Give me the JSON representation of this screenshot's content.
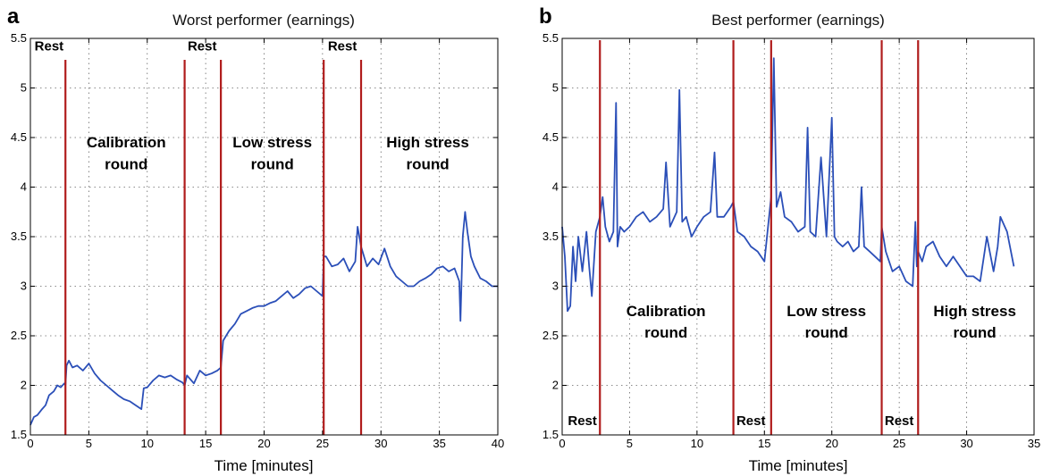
{
  "chart_data": [
    {
      "type": "line",
      "panel_label": "a",
      "title": "Worst performer (earnings)",
      "xlabel": "Time [minutes]",
      "ylabel": "",
      "xlim": [
        0,
        40
      ],
      "ylim": [
        1.5,
        5.5
      ],
      "xticks": [
        "0",
        "5",
        "10",
        "15",
        "20",
        "25",
        "30",
        "35",
        "40"
      ],
      "yticks": [
        "1.5",
        "2",
        "2.5",
        "3",
        "3.5",
        "4",
        "4.5",
        "5",
        "5.5"
      ],
      "grid": true,
      "line_color": "#2b4fb8",
      "boundary_color": "#b01c1c",
      "boundaries": [
        3.0,
        13.2,
        16.3,
        25.1,
        28.3
      ],
      "regions": [
        {
          "line1": "Calibration",
          "line2": "round",
          "x": 8.2,
          "y1": 4.4,
          "y2": 4.18
        },
        {
          "line1": "Low stress",
          "line2": "round",
          "x": 20.7,
          "y1": 4.4,
          "y2": 4.18
        },
        {
          "line1": "High stress",
          "line2": "round",
          "x": 34.0,
          "y1": 4.4,
          "y2": 4.18
        }
      ],
      "rest_labels": [
        {
          "text": "Rest",
          "x": 1.6,
          "y": 5.38
        },
        {
          "text": "Rest",
          "x": 14.7,
          "y": 5.38
        },
        {
          "text": "Rest",
          "x": 26.7,
          "y": 5.38
        }
      ],
      "series": [
        {
          "x": [
            0,
            0.3,
            0.6,
            1.0,
            1.3,
            1.6,
            2.0,
            2.3,
            2.6,
            2.9,
            3.0,
            3.1,
            3.3,
            3.6,
            4.0,
            4.5,
            5.0,
            5.5,
            6.0,
            6.5,
            7.0,
            7.5,
            8.0,
            8.5,
            9.0,
            9.5,
            9.7,
            10.0,
            10.5,
            11.0,
            11.5,
            12.0,
            12.5,
            13.0,
            13.2,
            13.4,
            14.0,
            14.5,
            15.0,
            15.5,
            16.0,
            16.3,
            16.5,
            17.0,
            17.5,
            18.0,
            18.5,
            19.0,
            19.5,
            20.0,
            20.5,
            21.0,
            21.5,
            22.0,
            22.5,
            23.0,
            23.5,
            24.0,
            24.5,
            25.0,
            25.1,
            25.3,
            25.8,
            26.3,
            26.8,
            27.3,
            27.8,
            28.0,
            28.3,
            28.8,
            29.3,
            29.8,
            30.3,
            30.8,
            31.3,
            31.8,
            32.3,
            32.8,
            33.3,
            33.8,
            34.3,
            34.8,
            35.3,
            35.8,
            36.3,
            36.7,
            36.8,
            37.0,
            37.2,
            37.4,
            37.7,
            38.0,
            38.5,
            39.0,
            39.5,
            40.0
          ],
          "y": [
            1.6,
            1.68,
            1.7,
            1.76,
            1.8,
            1.9,
            1.94,
            2.0,
            1.98,
            2.02,
            2.0,
            2.2,
            2.25,
            2.18,
            2.2,
            2.15,
            2.22,
            2.12,
            2.05,
            2.0,
            1.95,
            1.9,
            1.86,
            1.84,
            1.8,
            1.76,
            1.97,
            1.98,
            2.05,
            2.1,
            2.08,
            2.1,
            2.06,
            2.03,
            2.0,
            2.1,
            2.02,
            2.15,
            2.1,
            2.12,
            2.15,
            2.18,
            2.45,
            2.55,
            2.62,
            2.72,
            2.75,
            2.78,
            2.8,
            2.8,
            2.83,
            2.85,
            2.9,
            2.95,
            2.88,
            2.92,
            2.98,
            3.0,
            2.95,
            2.9,
            3.3,
            3.3,
            3.2,
            3.22,
            3.28,
            3.15,
            3.25,
            3.6,
            3.4,
            3.2,
            3.28,
            3.22,
            3.38,
            3.2,
            3.1,
            3.05,
            3.0,
            3.0,
            3.05,
            3.08,
            3.12,
            3.18,
            3.2,
            3.15,
            3.18,
            3.05,
            2.65,
            3.5,
            3.75,
            3.55,
            3.3,
            3.2,
            3.08,
            3.05,
            3.0,
            3.0
          ]
        }
      ]
    },
    {
      "type": "line",
      "panel_label": "b",
      "title": "Best performer (earnings)",
      "xlabel": "Time [minutes]",
      "ylabel": "",
      "xlim": [
        0,
        35
      ],
      "ylim": [
        1.5,
        5.5
      ],
      "xticks": [
        "0",
        "5",
        "10",
        "15",
        "20",
        "25",
        "30",
        "35"
      ],
      "yticks": [
        "1.5",
        "2",
        "2.5",
        "3",
        "3.5",
        "4",
        "4.5",
        "5",
        "5.5"
      ],
      "grid": true,
      "line_color": "#2b4fb8",
      "boundary_color": "#b01c1c",
      "boundaries": [
        2.8,
        12.7,
        15.5,
        23.7,
        26.4
      ],
      "regions": [
        {
          "line1": "Calibration",
          "line2": "round",
          "x": 7.7,
          "y1": 2.7,
          "y2": 2.48
        },
        {
          "line1": "Low stress",
          "line2": "round",
          "x": 19.6,
          "y1": 2.7,
          "y2": 2.48
        },
        {
          "line1": "High stress",
          "line2": "round",
          "x": 30.6,
          "y1": 2.7,
          "y2": 2.48
        }
      ],
      "rest_labels": [
        {
          "text": "Rest",
          "x": 1.5,
          "y": 1.6
        },
        {
          "text": "Rest",
          "x": 14.0,
          "y": 1.6
        },
        {
          "text": "Rest",
          "x": 25.0,
          "y": 1.6
        }
      ],
      "series": [
        {
          "x": [
            0,
            0.2,
            0.4,
            0.6,
            0.8,
            1.0,
            1.2,
            1.5,
            1.8,
            2.0,
            2.2,
            2.5,
            2.8,
            3.0,
            3.2,
            3.5,
            3.8,
            4.0,
            4.1,
            4.3,
            4.6,
            5.0,
            5.5,
            6.0,
            6.5,
            7.0,
            7.5,
            7.7,
            8.0,
            8.5,
            8.7,
            8.9,
            9.2,
            9.6,
            10.0,
            10.5,
            11.0,
            11.3,
            11.5,
            12.0,
            12.5,
            12.7,
            13.0,
            13.5,
            14.0,
            14.5,
            15.0,
            15.5,
            15.7,
            15.9,
            16.2,
            16.5,
            17.0,
            17.5,
            18.0,
            18.2,
            18.4,
            18.8,
            19.2,
            19.6,
            20.0,
            20.2,
            20.4,
            20.8,
            21.2,
            21.6,
            22.0,
            22.2,
            22.4,
            22.8,
            23.2,
            23.6,
            23.7,
            24.0,
            24.5,
            25.0,
            25.5,
            26.0,
            26.2,
            26.3,
            26.4,
            26.7,
            27.0,
            27.5,
            28.0,
            28.5,
            29.0,
            29.5,
            30.0,
            30.5,
            31.0,
            31.5,
            32.0,
            32.3,
            32.5,
            33.0,
            33.5
          ],
          "y": [
            3.6,
            3.3,
            2.75,
            2.8,
            3.4,
            3.05,
            3.5,
            3.15,
            3.55,
            3.2,
            2.9,
            3.55,
            3.7,
            3.9,
            3.6,
            3.45,
            3.55,
            4.85,
            3.4,
            3.6,
            3.55,
            3.6,
            3.7,
            3.75,
            3.65,
            3.7,
            3.78,
            4.25,
            3.6,
            3.75,
            4.98,
            3.65,
            3.7,
            3.5,
            3.6,
            3.7,
            3.75,
            4.35,
            3.7,
            3.7,
            3.8,
            3.85,
            3.55,
            3.5,
            3.4,
            3.35,
            3.25,
            3.9,
            5.3,
            3.8,
            3.95,
            3.7,
            3.65,
            3.55,
            3.6,
            4.6,
            3.55,
            3.5,
            4.3,
            3.5,
            4.7,
            3.5,
            3.45,
            3.4,
            3.45,
            3.35,
            3.4,
            4.0,
            3.4,
            3.35,
            3.3,
            3.25,
            3.6,
            3.35,
            3.15,
            3.2,
            3.05,
            3.0,
            3.65,
            3.2,
            3.35,
            3.25,
            3.4,
            3.45,
            3.3,
            3.2,
            3.3,
            3.2,
            3.1,
            3.1,
            3.05,
            3.5,
            3.15,
            3.4,
            3.7,
            3.55,
            3.2
          ]
        }
      ]
    }
  ]
}
